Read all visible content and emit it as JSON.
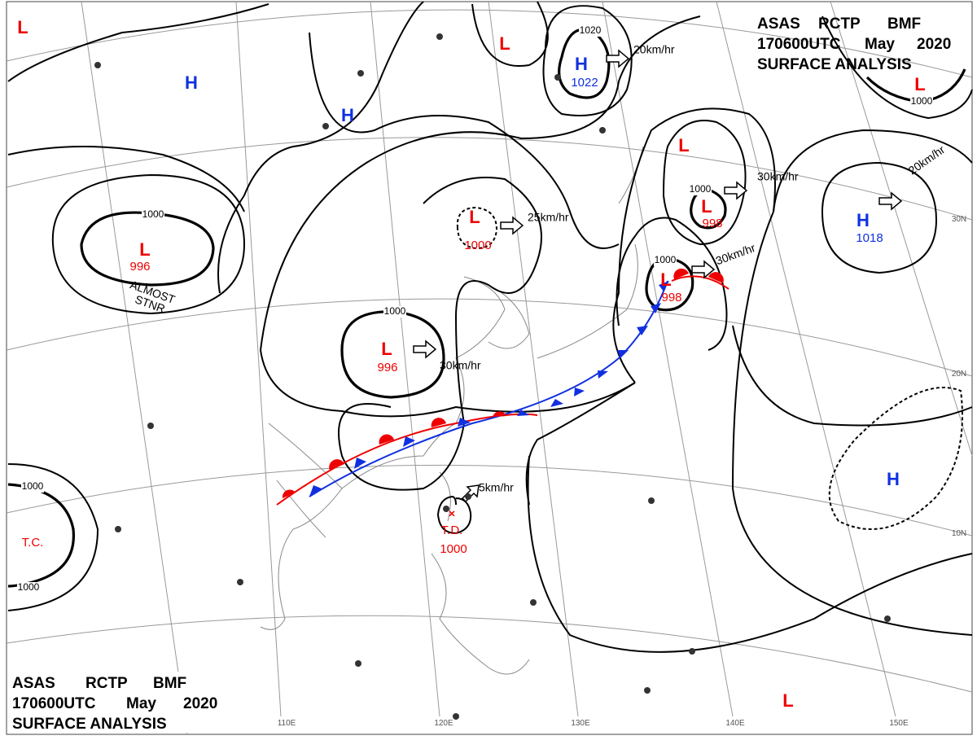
{
  "header": {
    "line1": [
      "ASAS",
      "RCTP",
      "BMF"
    ],
    "line2": [
      "170600UTC",
      "May",
      "2020"
    ],
    "line3": "SURFACE ANALYSIS"
  },
  "pressure_systems": [
    {
      "label": "L"
    },
    {
      "label": "H"
    },
    {
      "label": "H"
    },
    {
      "label": "L"
    },
    {
      "label": "H",
      "pressure": "1022"
    },
    {
      "label": "L"
    },
    {
      "label": "L"
    },
    {
      "label": "L",
      "pressure": "998"
    },
    {
      "label": "L",
      "pressure": "996"
    },
    {
      "label": "L",
      "pressure": "1000"
    },
    {
      "label": "L",
      "pressure": "996"
    },
    {
      "label": "L",
      "pressure": "998"
    },
    {
      "label": "H",
      "pressure": "1018"
    },
    {
      "label": "H"
    },
    {
      "label": "L"
    },
    {
      "label": "T.C."
    },
    {
      "label": "T.D.",
      "pressure": "1000"
    }
  ],
  "isobar_labels": [
    "1020",
    "1000",
    "1000",
    "1000",
    "1000",
    "1000",
    "1000",
    "1000"
  ],
  "motion_labels": [
    "20km/hr",
    "25km/hr",
    "30km/hr",
    "30km/hr",
    "20km/hr",
    "30km/hr",
    "5km/hr"
  ],
  "stationary_note": [
    "ALMOST",
    "STNR"
  ],
  "longitude_labels": [
    "110E",
    "120E",
    "130E",
    "140E",
    "150E"
  ],
  "latitude_labels": [
    "30N",
    "20N",
    "10N"
  ]
}
